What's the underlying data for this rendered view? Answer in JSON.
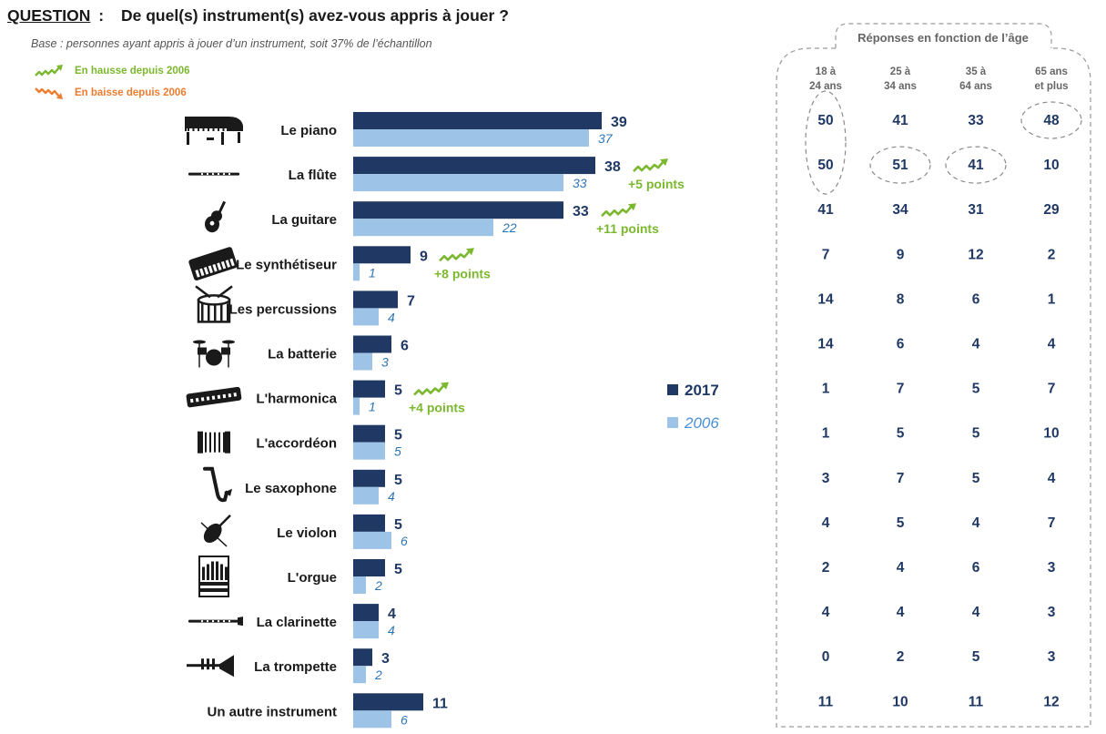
{
  "question": {
    "label": "QUESTION",
    "separator": ":",
    "text": "De quel(s) instrument(s) avez-vous appris à jouer ?"
  },
  "base_note": "Base : personnes ayant appris à jouer d’un instrument, soit 37% de l’échantillon",
  "trend_legend": {
    "up": {
      "label": "En hausse depuis 2006",
      "color": "#7cb82f",
      "icon": "trend-up-arrow-icon"
    },
    "down": {
      "label": "En baisse depuis 2006",
      "color": "#ed7d31",
      "icon": "trend-down-arrow-icon"
    }
  },
  "colors": {
    "series_2017": "#1f3864",
    "series_2006": "#9dc3e6",
    "label_2006": "#2e75b6",
    "trend_up": "#7cb82f",
    "panel_values": "#1f3864"
  },
  "chart_data": {
    "type": "bar",
    "orientation": "horizontal",
    "categories": [
      "Le piano",
      "La flûte",
      "La guitare",
      "Le synthétiseur",
      "Les percussions",
      "La batterie",
      "L'harmonica",
      "L'accordéon",
      "Le saxophone",
      "Le violon",
      "L'orgue",
      "La clarinette",
      "La trompette",
      "Un autre instrument"
    ],
    "category_icons": [
      "piano-icon",
      "flute-icon",
      "guitar-icon",
      "synthesizer-icon",
      "drum-icon",
      "drum-kit-icon",
      "harmonica-icon",
      "accordion-icon",
      "saxophone-icon",
      "violin-icon",
      "organ-icon",
      "clarinet-icon",
      "trumpet-icon",
      ""
    ],
    "series": [
      {
        "name": "2017",
        "values": [
          39,
          38,
          33,
          9,
          7,
          6,
          5,
          5,
          5,
          5,
          5,
          4,
          3,
          11
        ]
      },
      {
        "name": "2006",
        "values": [
          37,
          33,
          22,
          1,
          4,
          3,
          1,
          5,
          4,
          6,
          2,
          4,
          2,
          6
        ]
      }
    ],
    "trend_annotations": [
      {
        "category": "La flûte",
        "text": "+5 points",
        "direction": "up"
      },
      {
        "category": "La guitare",
        "text": "+11 points",
        "direction": "up"
      },
      {
        "category": "Le synthétiseur",
        "text": "+8 points",
        "direction": "up"
      },
      {
        "category": "L'harmonica",
        "text": "+4 points",
        "direction": "up"
      }
    ],
    "legend": [
      {
        "label": "2017",
        "color": "#1f3864"
      },
      {
        "label": "2006",
        "color": "#9dc3e6"
      }
    ],
    "legend_position": "right",
    "grid": false
  },
  "age_panel": {
    "title": "Réponses en fonction de l’âge",
    "columns": [
      {
        "line1": "18 à",
        "line2": "24 ans"
      },
      {
        "line1": "25 à",
        "line2": "34 ans"
      },
      {
        "line1": "35 à",
        "line2": "64 ans"
      },
      {
        "line1": "65 ans",
        "line2": "et plus"
      }
    ],
    "rows": [
      [
        50,
        41,
        33,
        48
      ],
      [
        50,
        51,
        41,
        10
      ],
      [
        41,
        34,
        31,
        29
      ],
      [
        7,
        9,
        12,
        2
      ],
      [
        14,
        8,
        6,
        1
      ],
      [
        14,
        6,
        4,
        4
      ],
      [
        1,
        7,
        5,
        7
      ],
      [
        1,
        5,
        5,
        10
      ],
      [
        3,
        7,
        5,
        4
      ],
      [
        4,
        5,
        4,
        7
      ],
      [
        2,
        4,
        6,
        3
      ],
      [
        4,
        4,
        4,
        3
      ],
      [
        0,
        2,
        5,
        3
      ],
      [
        11,
        10,
        11,
        12
      ]
    ],
    "highlighted_cells": [
      [
        0,
        0
      ],
      [
        1,
        0
      ],
      [
        0,
        3
      ],
      [
        1,
        1
      ],
      [
        1,
        2
      ]
    ]
  }
}
